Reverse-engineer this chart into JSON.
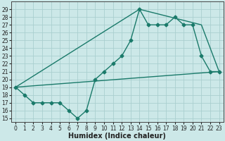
{
  "xlabel": "Humidex (Indice chaleur)",
  "ylabel": "",
  "background_color": "#cce8e8",
  "grid_color": "#aacfcf",
  "line_color": "#1a7a6a",
  "xlim": [
    -0.5,
    23.5
  ],
  "ylim": [
    14.5,
    30.0
  ],
  "yticks": [
    15,
    16,
    17,
    18,
    19,
    20,
    21,
    22,
    23,
    24,
    25,
    26,
    27,
    28,
    29
  ],
  "xticks": [
    0,
    1,
    2,
    3,
    4,
    5,
    6,
    7,
    8,
    9,
    10,
    11,
    12,
    13,
    14,
    15,
    16,
    17,
    18,
    19,
    20,
    21,
    22,
    23
  ],
  "series1_y": [
    19,
    18,
    17,
    17,
    17,
    17,
    16,
    15,
    16,
    20,
    21,
    22,
    23,
    25,
    29,
    27,
    27,
    27,
    28,
    27,
    27,
    23,
    21,
    21
  ],
  "line2_x": [
    0,
    23
  ],
  "line2_y": [
    19.0,
    21.0
  ],
  "line3_x": [
    0,
    14,
    21,
    23
  ],
  "line3_y": [
    19.0,
    29.0,
    27.0,
    21.0
  ],
  "font_size_tick": 5.5,
  "font_size_label": 7,
  "linewidth": 1.0,
  "marker": "D",
  "marker_size": 2.5
}
